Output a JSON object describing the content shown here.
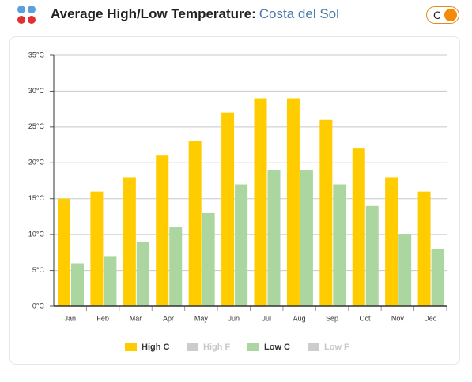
{
  "header": {
    "title": "Average High/Low Temperature:",
    "location": "Costa del Sol",
    "unit_toggle": "C"
  },
  "chart_data": {
    "type": "bar",
    "categories": [
      "Jan",
      "Feb",
      "Mar",
      "Apr",
      "May",
      "Jun",
      "Jul",
      "Aug",
      "Sep",
      "Oct",
      "Nov",
      "Dec"
    ],
    "series": [
      {
        "name": "High C",
        "color": "#ffcc00",
        "values": [
          15,
          16,
          18,
          21,
          23,
          27,
          29,
          29,
          26,
          22,
          18,
          16
        ]
      },
      {
        "name": "Low C",
        "color": "#acd6a0",
        "values": [
          6,
          7,
          9,
          11,
          13,
          17,
          19,
          19,
          17,
          14,
          10,
          8
        ]
      }
    ],
    "inactive_legend": [
      {
        "name": "High F",
        "color": "#cccccc"
      },
      {
        "name": "Low F",
        "color": "#cccccc"
      }
    ],
    "ylim": [
      0,
      35
    ],
    "yticks": [
      {
        "value": 0,
        "label": "0°C"
      },
      {
        "value": 5,
        "label": "5°C"
      },
      {
        "value": 10,
        "label": "10°C"
      },
      {
        "value": 15,
        "label": "15°C"
      },
      {
        "value": 20,
        "label": "20°C"
      },
      {
        "value": 25,
        "label": "25°C"
      },
      {
        "value": 30,
        "label": "30°C"
      },
      {
        "value": 35,
        "label": "35°C"
      }
    ],
    "grid": true
  }
}
